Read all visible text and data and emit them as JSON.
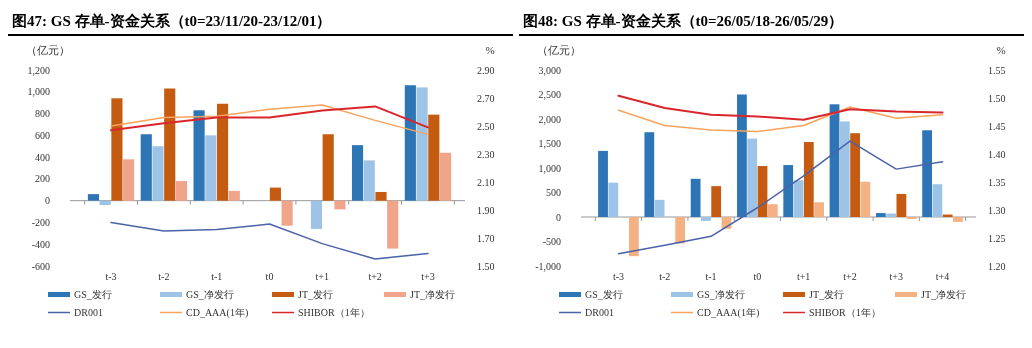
{
  "chart_data": [
    {
      "type": "bar",
      "title": "图47:  GS 存单-资金关系（t0=23/11/20-23/12/01）",
      "ylabel": "（亿元）",
      "y2label": "%",
      "categories": [
        "t-3",
        "t-2",
        "t-1",
        "t0",
        "t+1",
        "t+2",
        "t+3"
      ],
      "series": [
        {
          "name": "GS_发行",
          "color": "#2e75b6",
          "values": [
            60,
            610,
            830,
            null,
            null,
            510,
            1060
          ]
        },
        {
          "name": "GS_净发行",
          "color": "#9dc3e6",
          "values": [
            -40,
            500,
            600,
            null,
            -260,
            370,
            1040
          ]
        },
        {
          "name": "JT_发行",
          "color": "#c55a11",
          "values": [
            940,
            1030,
            890,
            120,
            610,
            80,
            790
          ]
        },
        {
          "name": "JT_净发行",
          "color": "#f0a58a",
          "values": [
            380,
            180,
            90,
            -230,
            -80,
            -440,
            440
          ]
        },
        {
          "name": "DR001",
          "type": "line",
          "axis": "y2",
          "color": "#4a62a8",
          "values": [
            1.81,
            1.75,
            1.76,
            1.8,
            1.66,
            1.55,
            1.59
          ]
        },
        {
          "name": "CD_AAA(1年)",
          "type": "line",
          "axis": "y2",
          "color": "#f8a35c",
          "values": [
            2.5,
            2.56,
            2.57,
            2.62,
            2.65,
            2.54,
            2.44
          ]
        },
        {
          "name": "SHIBOR（1年）",
          "type": "line",
          "axis": "y2",
          "color": "#d9262b",
          "values": [
            2.47,
            2.52,
            2.56,
            2.56,
            2.61,
            2.64,
            2.49
          ]
        }
      ],
      "ylim": [
        -600,
        1200
      ],
      "yticks": [
        {
          "value": -600,
          "label": "-600"
        },
        {
          "value": -400,
          "label": "-400"
        },
        {
          "value": -200,
          "label": "-200"
        },
        0,
        200,
        400,
        600,
        800,
        {
          "value": 1000,
          "label": "1,000"
        },
        {
          "value": 1200,
          "label": "1,200"
        }
      ],
      "y2lim": [
        1.5,
        2.9
      ],
      "y2ticks": [
        {
          "value": 1.5,
          "label": "1.50"
        },
        {
          "value": 1.7,
          "label": "1.70"
        },
        {
          "value": 1.9,
          "label": "1.90"
        },
        {
          "value": 2.1,
          "label": "2.10"
        },
        {
          "value": 2.3,
          "label": "2.30"
        },
        {
          "value": 2.5,
          "label": "2.50"
        },
        {
          "value": 2.7,
          "label": "2.70"
        },
        {
          "value": 2.9,
          "label": "2.90"
        }
      ],
      "legend": "bottom"
    },
    {
      "type": "bar",
      "title": "图48:  GS 存单-资金关系（t0=26/05/18-26/05/29）",
      "ylabel": "（亿元）",
      "y2label": "%",
      "categories": [
        "t-3",
        "t-2",
        "t-1",
        "t0",
        "t+1",
        "t+2",
        "t+3",
        "t+4"
      ],
      "series": [
        {
          "name": "GS_发行",
          "color": "#2e75b6",
          "values": [
            1350,
            1730,
            780,
            2500,
            1060,
            2300,
            80,
            1770
          ]
        },
        {
          "name": "GS_净发行",
          "color": "#9dc3e6",
          "values": [
            700,
            350,
            -80,
            1600,
            750,
            1950,
            70,
            670
          ]
        },
        {
          "name": "JT_发行",
          "color": "#c55a11",
          "values": [
            null,
            null,
            630,
            1040,
            1530,
            1710,
            470,
            50
          ]
        },
        {
          "name": "JT_净发行",
          "color": "#f4b183",
          "values": [
            -800,
            -540,
            -240,
            260,
            300,
            720,
            -40,
            -100
          ]
        },
        {
          "name": "DR001",
          "type": "line",
          "axis": "y2",
          "color": "#4a62a8",
          "values": [
            1.222,
            1.237,
            1.253,
            1.304,
            1.361,
            1.423,
            1.373,
            1.386
          ]
        },
        {
          "name": "CD_AAA(1年)",
          "type": "line",
          "axis": "y2",
          "color": "#f8a35c",
          "values": [
            1.478,
            1.451,
            1.443,
            1.44,
            1.451,
            1.484,
            1.464,
            1.47
          ]
        },
        {
          "name": "SHIBOR（1年）",
          "type": "line",
          "axis": "y2",
          "color": "#d9262b",
          "values": [
            1.504,
            1.482,
            1.47,
            1.467,
            1.461,
            1.48,
            1.476,
            1.474
          ]
        }
      ],
      "ylim": [
        -1000,
        3000
      ],
      "yticks": [
        {
          "value": -1000,
          "label": "-1,000"
        },
        {
          "value": -500,
          "label": "-500"
        },
        0,
        500,
        {
          "value": 1000,
          "label": "1,000"
        },
        {
          "value": 1500,
          "label": "1,500"
        },
        {
          "value": 2000,
          "label": "2,000"
        },
        {
          "value": 2500,
          "label": "2,500"
        },
        {
          "value": 3000,
          "label": "3,000"
        }
      ],
      "y2lim": [
        1.2,
        1.55
      ],
      "y2ticks": [
        {
          "value": 1.2,
          "label": "1.20"
        },
        {
          "value": 1.25,
          "label": "1.25"
        },
        {
          "value": 1.3,
          "label": "1.30"
        },
        {
          "value": 1.35,
          "label": "1.35"
        },
        {
          "value": 1.4,
          "label": "1.40"
        },
        {
          "value": 1.45,
          "label": "1.45"
        },
        {
          "value": 1.5,
          "label": "1.50"
        },
        {
          "value": 1.55,
          "label": "1.55"
        }
      ],
      "legend": "bottom"
    }
  ]
}
